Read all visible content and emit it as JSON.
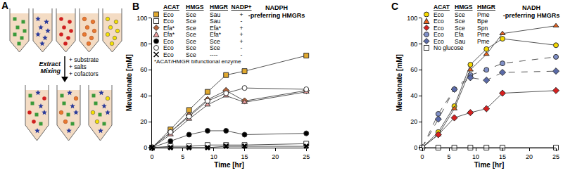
{
  "panel_a": {
    "label": "A",
    "left_text": [
      "Extract",
      "Mixing"
    ],
    "right_text": [
      "+ substrate",
      "+ salts",
      "+ cofactors"
    ]
  },
  "chart_data": [
    {
      "type": "line",
      "label": "B",
      "x_label": "Time [hr]",
      "y_label": "Mevalonate [mM]",
      "x": [
        0,
        3,
        6,
        9,
        12,
        15,
        25
      ],
      "xlim": [
        0,
        25
      ],
      "xticks": [
        0,
        5,
        10,
        15,
        20,
        25
      ],
      "ylim": [
        0,
        100
      ],
      "yticks": [
        0,
        20,
        40,
        60,
        80,
        100
      ],
      "grid": false,
      "legend_columns": [
        "ACAT",
        "HMGS",
        "HMGR",
        "NADP+"
      ],
      "legend_note": "*ACAT/HMGR bifunctional enzyme",
      "annotation": [
        "NADPH",
        "-preferring HMGRs"
      ],
      "series": [
        {
          "cells": [
            "Eco",
            "Sce",
            "Sau",
            "+"
          ],
          "color": "#e0a82e",
          "marker": "square",
          "line_style": "solid",
          "values": [
            0,
            14,
            29,
            43,
            56,
            59,
            71
          ]
        },
        {
          "cells": [
            "Eco",
            "Sce",
            "Sau",
            "-"
          ],
          "color": "#ffffff",
          "marker": "square",
          "line_style": "solid",
          "values": [
            0,
            1,
            1,
            2,
            2,
            2,
            3
          ]
        },
        {
          "cells": [
            "Efa*",
            "Sce",
            "Efa*",
            "+"
          ],
          "color": "#b8653a",
          "marker": "diamond",
          "line_style": "solid",
          "values": [
            0,
            12,
            25,
            37,
            44,
            36,
            44
          ]
        },
        {
          "cells": [
            "Efa*",
            "Sce",
            "Efa*",
            "+"
          ],
          "color": "#f0a0a0",
          "marker": "triangle-up",
          "line_style": "solid",
          "values": [
            0,
            10,
            22,
            33,
            40,
            35,
            43
          ]
        },
        {
          "cells": [
            "Eco",
            "Sce",
            "Sce",
            "+"
          ],
          "color": "#000000",
          "marker": "circle",
          "line_style": "solid",
          "values": [
            0,
            5,
            10,
            13,
            13,
            10,
            11
          ]
        },
        {
          "cells": [
            "Eco",
            "Sce",
            "Sce",
            "-"
          ],
          "color": "#ffffff",
          "marker": "circle",
          "line_style": "solid",
          "values": [
            0,
            12,
            24,
            36,
            42,
            46,
            45
          ]
        },
        {
          "cells": [
            "Eco",
            "Sce",
            "----",
            "-"
          ],
          "color": "#000000",
          "marker": "x",
          "line_style": "solid",
          "values": [
            0,
            0,
            0,
            0,
            1,
            1,
            1
          ]
        }
      ]
    },
    {
      "type": "line",
      "label": "C",
      "x_label": "Time [hr]",
      "y_label": "Mevalonate [mM]",
      "x": [
        0,
        3,
        6,
        9,
        12,
        15,
        25
      ],
      "xlim": [
        0,
        25
      ],
      "xticks": [
        0,
        5,
        10,
        15,
        20,
        25
      ],
      "ylim": [
        0,
        100
      ],
      "yticks": [
        0,
        20,
        40,
        60,
        80,
        100
      ],
      "grid": false,
      "legend_columns": [
        "ACAT",
        "HMGS",
        "HMGR"
      ],
      "annotation": [
        "NADH",
        "-preferring HMGRs"
      ],
      "series": [
        {
          "cells": [
            "Eco",
            "Sce",
            "Pme"
          ],
          "color": "#f5d800",
          "marker": "circle",
          "line_style": "solid",
          "values": [
            0,
            12,
            32,
            64,
            76,
            84,
            79
          ]
        },
        {
          "cells": [
            "Eco",
            "Sce",
            "Bpe"
          ],
          "color": "#e8601c",
          "marker": "triangle-up",
          "line_style": "solid",
          "values": [
            0,
            10,
            30,
            60,
            72,
            88,
            94
          ]
        },
        {
          "cells": [
            "Eco",
            "Sce",
            "Spn"
          ],
          "color": "#d62020",
          "marker": "diamond",
          "line_style": "solid",
          "values": [
            0,
            10,
            23,
            27,
            30,
            42,
            44
          ]
        },
        {
          "cells": [
            "Eco",
            "Efa",
            "Pme"
          ],
          "color": "#8090c8",
          "marker": "circle",
          "line_style": "dash",
          "values": [
            0,
            26,
            45,
            56,
            60,
            65,
            70
          ]
        },
        {
          "cells": [
            "Eco",
            "Sau",
            "Pme"
          ],
          "color": "#5a6aa8",
          "marker": "diamond",
          "line_style": "dash",
          "values": [
            0,
            22,
            45,
            54,
            52,
            58,
            59
          ]
        },
        {
          "cells": [
            "No glucose"
          ],
          "color": "#ffffff",
          "marker": "square",
          "line_style": "solid",
          "values": [
            0,
            0,
            0,
            0,
            0,
            0,
            0
          ]
        }
      ]
    }
  ]
}
